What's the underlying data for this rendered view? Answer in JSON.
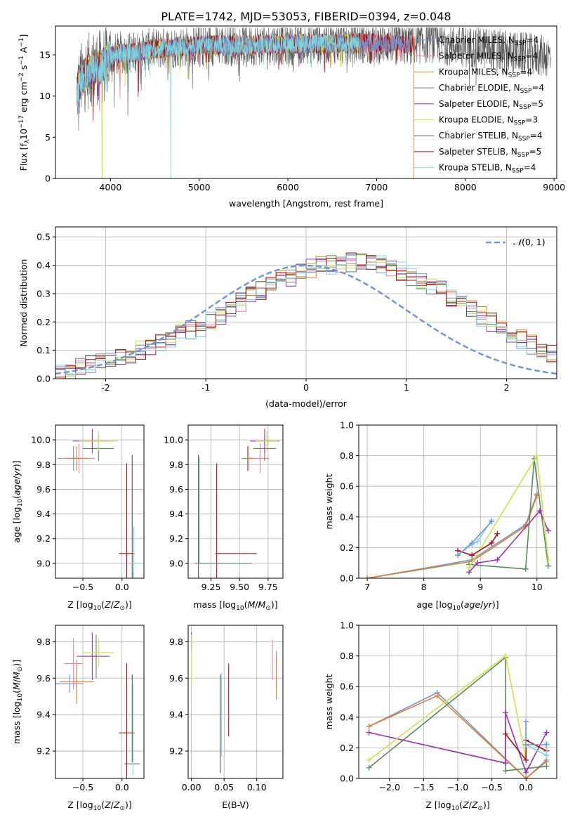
{
  "figure_title": "PLATE=1742, MJD=53053, FIBERID=0394, z=0.048",
  "palette": {
    "Chabrier MILES": "#6f96d6",
    "Salpeter MILES": "#ef7fb8",
    "Kroupa MILES": "#e07f2a",
    "Chabrier ELODIE": "#5c8a5c",
    "Salpeter ELODIE": "#9c2fb5",
    "Kroupa ELODIE": "#cfe04a",
    "Chabrier STELIB": "#555555",
    "Salpeter STELIB": "#aa0f0f",
    "Kroupa STELIB": "#7fd6dc",
    "gaussian": "#6f96d6"
  },
  "chart_data": [
    {
      "id": "spectrum",
      "type": "line",
      "xlabel": "wavelength [Angstrom, rest frame]",
      "ylabel": "Flux [f",
      "xlim": [
        3380,
        9030
      ],
      "ylim": [
        0,
        18.5
      ],
      "xticks": [
        4000,
        5000,
        6000,
        7000,
        8000,
        9000
      ],
      "yticks": [
        0,
        5,
        10,
        15
      ],
      "legend_position": "upper right",
      "continuum_x": [
        3620,
        3650,
        3700,
        3800,
        3900,
        4000,
        4100,
        4200,
        4400,
        4600,
        4800,
        5000,
        5200,
        5400,
        5600,
        5800,
        6000,
        6200,
        6400,
        6600,
        6800,
        7000,
        7200,
        7400,
        7600,
        7800,
        8000,
        8200,
        8400,
        8600,
        8800,
        8960
      ],
      "continuum_y": [
        10.5,
        11.5,
        12.5,
        13.5,
        13.5,
        14.8,
        15.2,
        15.2,
        15.6,
        15.8,
        16.0,
        16.1,
        16.2,
        16.2,
        16.2,
        16.3,
        16.3,
        16.4,
        16.4,
        16.4,
        16.5,
        16.4,
        16.5,
        16.2,
        16.6,
        16.3,
        16.0,
        15.8,
        15.5,
        15.2,
        15.0,
        14.8
      ],
      "series": [
        {
          "name": "Chabrier MILES",
          "label_main": "Chabrier MILES, N",
          "nssp": "=4",
          "x_start": 3620,
          "x_end": 7400
        },
        {
          "name": "Salpeter MILES",
          "label_main": "Salpeter MILES, N",
          "nssp": "=4",
          "x_start": 3620,
          "x_end": 7400
        },
        {
          "name": "Kroupa MILES",
          "label_main": "Kroupa MILES, N",
          "nssp": "=4",
          "x_start": 3620,
          "x_end": 7420,
          "drop_to_zero_at": 7420
        },
        {
          "name": "Chabrier ELODIE",
          "label_main": "Chabrier ELODIE, N",
          "nssp": "=4",
          "x_start": 3620,
          "x_end": 6800
        },
        {
          "name": "Salpeter ELODIE",
          "label_main": "Salpeter ELODIE, N",
          "nssp": "=5",
          "x_start": 3620,
          "x_end": 6800
        },
        {
          "name": "Kroupa ELODIE",
          "label_main": "Kroupa ELODIE, N",
          "nssp": "=3",
          "x_start": 3620,
          "x_end": 6800,
          "drops": [
            3905,
            6810
          ]
        },
        {
          "name": "Chabrier STELIB",
          "label_main": "Chabrier STELIB, N",
          "nssp": "=4",
          "x_start": 3620,
          "x_end": 8960,
          "noisy": true
        },
        {
          "name": "Salpeter STELIB",
          "label_main": "Salpeter STELIB, N",
          "nssp": "=5",
          "x_start": 3620,
          "x_end": 7420
        },
        {
          "name": "Kroupa STELIB",
          "label_main": "Kroupa STELIB, N",
          "nssp": "=4",
          "x_start": 3620,
          "x_end": 6800,
          "drops": [
            4680
          ]
        }
      ]
    },
    {
      "id": "residual_hist",
      "type": "line",
      "xlabel": "(data-model)/error",
      "ylabel": "Normed distribution",
      "xlim": [
        -2.5,
        2.5
      ],
      "ylim": [
        0,
        0.535
      ],
      "xticks": [
        -2,
        -1,
        0,
        1,
        2
      ],
      "yticks": [
        0.0,
        0.1,
        0.2,
        0.3,
        0.4,
        0.5
      ],
      "grid": true,
      "legend_position": "upper right",
      "gaussian_label": "(0, 1)",
      "gaussian_glyph": "𝒩",
      "bin_edges_start": -2.5,
      "bin_width": 0.1,
      "base_density": [
        0.02,
        0.03,
        0.04,
        0.05,
        0.06,
        0.06,
        0.07,
        0.09,
        0.1,
        0.11,
        0.12,
        0.14,
        0.16,
        0.17,
        0.18,
        0.2,
        0.22,
        0.24,
        0.27,
        0.29,
        0.31,
        0.33,
        0.35,
        0.36,
        0.38,
        0.39,
        0.4,
        0.4,
        0.4,
        0.41,
        0.41,
        0.4,
        0.4,
        0.39,
        0.38,
        0.36,
        0.35,
        0.33,
        0.31,
        0.29,
        0.26,
        0.24,
        0.22,
        0.2,
        0.18,
        0.16,
        0.14,
        0.12,
        0.1,
        0.09,
        0.07,
        0.06,
        0.05,
        0.04,
        0.04,
        0.03,
        0.03,
        0.02,
        0.02,
        0.02
      ],
      "series_names": [
        "Chabrier MILES",
        "Salpeter MILES",
        "Kroupa MILES",
        "Chabrier ELODIE",
        "Salpeter ELODIE",
        "Kroupa ELODIE",
        "Chabrier STELIB",
        "Salpeter STELIB",
        "Kroupa STELIB"
      ]
    },
    {
      "id": "age_vs_Z",
      "type": "scatter",
      "xlabel": "Z [log",
      "ylabel": "age  [log",
      "xlim": [
        -0.85,
        0.28
      ],
      "ylim": [
        8.88,
        10.12
      ],
      "xticks": [
        -0.5,
        0.0
      ],
      "xticklabels": [
        "−0.5",
        "0.0"
      ],
      "yticks": [
        9.0,
        9.2,
        9.4,
        9.6,
        9.8,
        10.0
      ],
      "grid": true,
      "points": [
        {
          "series": "Chabrier MILES",
          "x": -0.62,
          "xerr": 0.2,
          "y": 9.85,
          "yerr": 0.1
        },
        {
          "series": "Salpeter MILES",
          "x": -0.55,
          "xerr": 0.2,
          "y": 9.85,
          "yerr": 0.12
        },
        {
          "series": "Kroupa MILES",
          "x": -0.58,
          "xerr": 0.15,
          "y": 9.85,
          "yerr": 0.1
        },
        {
          "series": "Chabrier ELODIE",
          "x": -0.3,
          "xerr": 0.2,
          "y": 9.93,
          "yerr": 0.1
        },
        {
          "series": "Salpeter ELODIE",
          "x": -0.38,
          "xerr": 0.25,
          "y": 9.99,
          "yerr": 0.1
        },
        {
          "series": "Kroupa ELODIE",
          "x": -0.3,
          "xerr": 0.25,
          "y": 9.99,
          "yerr": 0.08
        },
        {
          "series": "Chabrier STELIB",
          "x": 0.13,
          "xerr": 0.0,
          "y": 9.2,
          "yerr": 0.68
        },
        {
          "series": "Salpeter STELIB",
          "x": 0.06,
          "xerr": 0.1,
          "y": 9.08,
          "yerr": 0.73
        },
        {
          "series": "Kroupa STELIB",
          "x": 0.15,
          "xerr": 0.08,
          "y": 9.0,
          "yerr": 0.3
        }
      ]
    },
    {
      "id": "age_vs_mass",
      "type": "scatter",
      "xlabel": "mass [log",
      "ylabel": "",
      "xlim": [
        9.05,
        9.88
      ],
      "ylim": [
        8.88,
        10.12
      ],
      "xticks": [
        9.25,
        9.5,
        9.75
      ],
      "xticklabels": [
        "9.25",
        "9.50",
        "9.75"
      ],
      "yticks": [
        9.0,
        9.2,
        9.4,
        9.6,
        9.8,
        10.0
      ],
      "grid": true,
      "points": [
        {
          "series": "Chabrier MILES",
          "x": 9.57,
          "xerr": 0.05,
          "y": 9.85,
          "yerr": 0.1
        },
        {
          "series": "Salpeter MILES",
          "x": 9.68,
          "xerr": 0.08,
          "y": 9.85,
          "yerr": 0.12
        },
        {
          "series": "Kroupa MILES",
          "x": 9.58,
          "xerr": 0.05,
          "y": 9.85,
          "yerr": 0.1
        },
        {
          "series": "Chabrier ELODIE",
          "x": 9.72,
          "xerr": 0.1,
          "y": 9.93,
          "yerr": 0.1
        },
        {
          "series": "Salpeter ELODIE",
          "x": 9.72,
          "xerr": 0.13,
          "y": 9.99,
          "yerr": 0.1
        },
        {
          "series": "Kroupa ELODIE",
          "x": 9.74,
          "xerr": 0.1,
          "y": 9.99,
          "yerr": 0.08
        },
        {
          "series": "Chabrier STELIB",
          "x": 9.14,
          "xerr": 0.0,
          "y": 9.38,
          "yerr": 0.5
        },
        {
          "series": "Salpeter STELIB",
          "x": 9.3,
          "xerr": 0.0,
          "y": 9.08,
          "yerr": 0.73
        },
        {
          "series": "Salpeter STELIB",
          "x": 9.47,
          "xerr": 0.18,
          "y": 9.08,
          "yerr": 0.0
        },
        {
          "series": "Kroupa STELIB",
          "x": 9.15,
          "xerr": 0.0,
          "y": 9.43,
          "yerr": 0.43
        },
        {
          "series": "Chabrier ELODIE",
          "x": 9.36,
          "xerr": 0.25,
          "y": 9.0,
          "yerr": 0.0
        }
      ]
    },
    {
      "id": "massweight_vs_age",
      "type": "line",
      "xlabel": "age  [log",
      "ylabel": "mass weight",
      "xlim": [
        6.85,
        10.35
      ],
      "ylim": [
        0,
        1.0
      ],
      "xticks": [
        7,
        8,
        9,
        10
      ],
      "yticks": [
        0.0,
        0.2,
        0.4,
        0.6,
        0.8,
        1.0
      ],
      "grid": true,
      "series": [
        {
          "name": "Chabrier MILES",
          "x": [
            7.0,
            8.85,
            9.8,
            10.0
          ],
          "y": [
            0.0,
            0.12,
            0.35,
            0.55
          ]
        },
        {
          "name": "Kroupa MILES",
          "x": [
            7.0,
            8.85,
            9.8,
            10.0
          ],
          "y": [
            0.0,
            0.11,
            0.34,
            0.54
          ]
        },
        {
          "name": "Chabrier ELODIE",
          "x": [
            8.8,
            9.8,
            9.95,
            10.2
          ],
          "y": [
            0.09,
            0.06,
            0.78,
            0.08
          ]
        },
        {
          "name": "Salpeter ELODIE",
          "x": [
            8.8,
            8.95,
            9.3,
            10.05,
            10.2
          ],
          "y": [
            0.04,
            0.1,
            0.12,
            0.44,
            0.31
          ]
        },
        {
          "name": "Kroupa ELODIE",
          "x": [
            8.8,
            10.0,
            10.2
          ],
          "y": [
            0.07,
            0.8,
            0.12
          ]
        },
        {
          "name": "Salpeter STELIB",
          "x": [
            8.6,
            8.85,
            9.2,
            9.3
          ],
          "y": [
            0.18,
            0.15,
            0.23,
            0.29
          ]
        },
        {
          "name": "Kroupa STELIB",
          "x": [
            8.6,
            8.85,
            8.95,
            9.2
          ],
          "y": [
            0.15,
            0.22,
            0.24,
            0.38
          ]
        },
        {
          "name": "Chabrier MILES",
          "x": [
            8.6,
            8.85,
            9.2
          ],
          "y": [
            0.15,
            0.23,
            0.37
          ]
        }
      ]
    },
    {
      "id": "mass_vs_Z",
      "type": "scatter",
      "xlabel": "Z [log",
      "ylabel": "mass [log",
      "xlim": [
        -0.85,
        0.28
      ],
      "ylim": [
        9.05,
        9.89
      ],
      "xticks": [
        -0.5,
        0.0
      ],
      "xticklabels": [
        "−0.5",
        "0.0"
      ],
      "yticks": [
        9.2,
        9.4,
        9.6,
        9.8
      ],
      "grid": true,
      "points": [
        {
          "series": "Chabrier MILES",
          "x": -0.67,
          "xerr": 0.18,
          "y": 9.57,
          "yerr": 0.05
        },
        {
          "series": "Salpeter MILES",
          "x": -0.62,
          "xerr": 0.12,
          "y": 9.68,
          "yerr": 0.14
        },
        {
          "series": "Kroupa MILES",
          "x": -0.58,
          "xerr": 0.22,
          "y": 9.58,
          "yerr": 0.12
        },
        {
          "series": "Chabrier ELODIE",
          "x": -0.33,
          "xerr": 0.18,
          "y": 9.72,
          "yerr": 0.12
        },
        {
          "series": "Salpeter ELODIE",
          "x": -0.38,
          "xerr": 0.2,
          "y": 9.72,
          "yerr": 0.13
        },
        {
          "series": "Kroupa ELODIE",
          "x": -0.3,
          "xerr": 0.2,
          "y": 9.74,
          "yerr": 0.08
        },
        {
          "series": "Chabrier STELIB",
          "x": 0.13,
          "xerr": 0.1,
          "y": 9.13,
          "yerr": 0.0
        },
        {
          "series": "Chabrier STELIB",
          "x": 0.13,
          "xerr": 0.0,
          "y": 9.38,
          "yerr": 0.24
        },
        {
          "series": "Salpeter STELIB",
          "x": 0.06,
          "xerr": 0.1,
          "y": 9.3,
          "yerr": 0.38
        },
        {
          "series": "Kroupa STELIB",
          "x": 0.14,
          "xerr": 0.0,
          "y": 9.32,
          "yerr": 0.25
        }
      ]
    },
    {
      "id": "mass_vs_ebv",
      "type": "scatter",
      "xlabel": "E(B-V)",
      "ylabel": "",
      "xlim": [
        -0.005,
        0.14
      ],
      "ylim": [
        9.05,
        9.89
      ],
      "xticks": [
        0.0,
        0.05,
        0.1
      ],
      "xticklabels": [
        "0.00",
        "0.05",
        "0.10"
      ],
      "yticks": [
        9.2,
        9.4,
        9.6,
        9.8
      ],
      "grid": true,
      "points": [
        {
          "series": "Salpeter ELODIE",
          "x": 0.0,
          "xerr": 0.0,
          "y": 9.8,
          "yerr": 0.05
        },
        {
          "series": "Kroupa ELODIE",
          "x": 0.0,
          "xerr": 0.0,
          "y": 9.7,
          "yerr": 0.14
        },
        {
          "series": "Chabrier STELIB",
          "x": 0.044,
          "xerr": 0.0,
          "y": 9.35,
          "yerr": 0.27
        },
        {
          "series": "Kroupa STELIB",
          "x": 0.046,
          "xerr": 0.0,
          "y": 9.4,
          "yerr": 0.23
        },
        {
          "series": "Salpeter STELIB",
          "x": 0.057,
          "xerr": 0.0,
          "y": 9.48,
          "yerr": 0.2
        },
        {
          "series": "Salpeter MILES",
          "x": 0.124,
          "xerr": 0.0,
          "y": 9.7,
          "yerr": 0.11
        },
        {
          "series": "Chabrier MILES",
          "x": 0.13,
          "xerr": 0.0,
          "y": 9.65,
          "yerr": 0.1
        },
        {
          "series": "Kroupa MILES",
          "x": 0.13,
          "xerr": 0.0,
          "y": 9.6,
          "yerr": 0.12
        }
      ]
    },
    {
      "id": "massweight_vs_Z",
      "type": "line",
      "xlabel": "Z [log",
      "ylabel": "mass weight",
      "xlim": [
        -2.45,
        0.45
      ],
      "ylim": [
        0,
        1.0
      ],
      "xticks": [
        -2.0,
        -1.5,
        -1.0,
        -0.5,
        0.0
      ],
      "xticklabels": [
        "−2.0",
        "−1.5",
        "−1.0",
        "−0.5",
        "0.0"
      ],
      "yticks": [
        0.0,
        0.2,
        0.4,
        0.6,
        0.8,
        1.0
      ],
      "grid": true,
      "series": [
        {
          "name": "Chabrier MILES",
          "x": [
            -2.3,
            -1.3,
            0.0,
            0.3
          ],
          "y": [
            0.34,
            0.56,
            0.0,
            0.12
          ]
        },
        {
          "name": "Kroupa MILES",
          "x": [
            -2.3,
            -1.3,
            0.0,
            0.3
          ],
          "y": [
            0.34,
            0.54,
            0.0,
            0.11
          ]
        },
        {
          "name": "Chabrier ELODIE",
          "x": [
            -2.3,
            -0.3,
            -0.3,
            0.3
          ],
          "y": [
            0.07,
            0.79,
            0.05,
            0.08
          ]
        },
        {
          "name": "Salpeter ELODIE",
          "x": [
            -2.3,
            -0.3,
            -0.3,
            0.0,
            0.3
          ],
          "y": [
            0.3,
            0.1,
            0.43,
            0.04,
            0.3
          ]
        },
        {
          "name": "Kroupa ELODIE",
          "x": [
            -2.3,
            -0.3,
            0.0
          ],
          "y": [
            0.12,
            0.8,
            0.12
          ]
        },
        {
          "name": "Salpeter STELIB",
          "x": [
            -0.3,
            0.0,
            0.0,
            0.3
          ],
          "y": [
            0.29,
            0.12,
            0.25,
            0.18
          ]
        },
        {
          "name": "Kroupa STELIB",
          "x": [
            0.0,
            0.0,
            0.3,
            0.3
          ],
          "y": [
            0.37,
            0.22,
            0.15,
            0.23
          ]
        },
        {
          "name": "Chabrier MILES",
          "x": [
            0.0,
            0.0,
            0.3
          ],
          "y": [
            0.37,
            0.22,
            0.22
          ]
        }
      ]
    }
  ]
}
